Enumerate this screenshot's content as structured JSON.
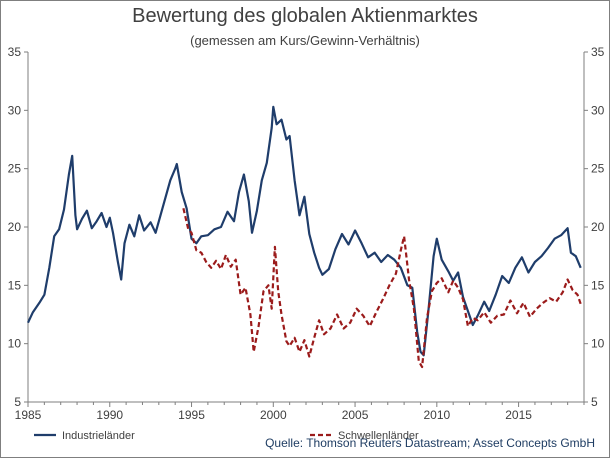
{
  "chart_data": {
    "type": "line",
    "title": "Bewertung des globalen Aktienmarktes",
    "subtitle": "(gemessen am Kurs/Gewinn-Verhältnis)",
    "source": "Quelle: Thomson Reuters Datastream; Asset Concepts GmbH",
    "xlim": [
      1985,
      2019
    ],
    "ylim": [
      5,
      35
    ],
    "x_ticks": [
      1985,
      1990,
      1995,
      2000,
      2005,
      2010,
      2015
    ],
    "y_ticks": [
      5,
      10,
      15,
      20,
      25,
      30,
      35
    ],
    "legend_position": "bottom",
    "grid": false,
    "series": [
      {
        "name": "Industrieländer",
        "color": "#1f3d6b",
        "style": "solid",
        "points": [
          [
            1985.0,
            11.8
          ],
          [
            1985.3,
            12.7
          ],
          [
            1985.7,
            13.5
          ],
          [
            1986.0,
            14.2
          ],
          [
            1986.3,
            16.5
          ],
          [
            1986.6,
            19.2
          ],
          [
            1986.9,
            19.8
          ],
          [
            1987.2,
            21.5
          ],
          [
            1987.5,
            24.5
          ],
          [
            1987.7,
            26.1
          ],
          [
            1987.9,
            21.0
          ],
          [
            1988.0,
            19.8
          ],
          [
            1988.3,
            20.7
          ],
          [
            1988.6,
            21.4
          ],
          [
            1988.9,
            19.9
          ],
          [
            1989.2,
            20.5
          ],
          [
            1989.5,
            21.2
          ],
          [
            1989.8,
            20.0
          ],
          [
            1990.0,
            20.8
          ],
          [
            1990.2,
            19.5
          ],
          [
            1990.5,
            17.0
          ],
          [
            1990.7,
            15.5
          ],
          [
            1990.9,
            18.6
          ],
          [
            1991.2,
            20.2
          ],
          [
            1991.5,
            19.2
          ],
          [
            1991.8,
            21.0
          ],
          [
            1992.1,
            19.7
          ],
          [
            1992.5,
            20.4
          ],
          [
            1992.8,
            19.5
          ],
          [
            1993.1,
            21.0
          ],
          [
            1993.4,
            22.5
          ],
          [
            1993.7,
            24.0
          ],
          [
            1994.0,
            25.0
          ],
          [
            1994.1,
            25.4
          ],
          [
            1994.4,
            23.0
          ],
          [
            1994.7,
            21.6
          ],
          [
            1995.0,
            19.0
          ],
          [
            1995.3,
            18.6
          ],
          [
            1995.6,
            19.2
          ],
          [
            1996.0,
            19.3
          ],
          [
            1996.4,
            19.8
          ],
          [
            1996.8,
            20.0
          ],
          [
            1997.2,
            21.3
          ],
          [
            1997.6,
            20.5
          ],
          [
            1997.9,
            23.0
          ],
          [
            1998.2,
            24.5
          ],
          [
            1998.5,
            22.2
          ],
          [
            1998.7,
            19.5
          ],
          [
            1999.0,
            21.4
          ],
          [
            1999.3,
            24.0
          ],
          [
            1999.6,
            25.5
          ],
          [
            1999.9,
            28.5
          ],
          [
            2000.0,
            30.3
          ],
          [
            2000.2,
            28.8
          ],
          [
            2000.5,
            29.2
          ],
          [
            2000.8,
            27.5
          ],
          [
            2001.0,
            27.8
          ],
          [
            2001.3,
            24.0
          ],
          [
            2001.6,
            21.0
          ],
          [
            2001.9,
            22.6
          ],
          [
            2002.2,
            19.4
          ],
          [
            2002.5,
            17.8
          ],
          [
            2002.8,
            16.5
          ],
          [
            2003.0,
            15.9
          ],
          [
            2003.4,
            16.4
          ],
          [
            2003.8,
            18.1
          ],
          [
            2004.2,
            19.4
          ],
          [
            2004.6,
            18.5
          ],
          [
            2005.0,
            19.7
          ],
          [
            2005.4,
            18.6
          ],
          [
            2005.8,
            17.4
          ],
          [
            2006.2,
            17.8
          ],
          [
            2006.6,
            17.0
          ],
          [
            2007.0,
            17.6
          ],
          [
            2007.4,
            17.2
          ],
          [
            2007.8,
            16.5
          ],
          [
            2008.2,
            15.0
          ],
          [
            2008.5,
            14.8
          ],
          [
            2008.8,
            11.0
          ],
          [
            2009.0,
            9.3
          ],
          [
            2009.2,
            9.0
          ],
          [
            2009.5,
            13.0
          ],
          [
            2009.8,
            17.5
          ],
          [
            2010.0,
            19.0
          ],
          [
            2010.3,
            17.2
          ],
          [
            2010.7,
            16.2
          ],
          [
            2011.0,
            15.4
          ],
          [
            2011.3,
            16.1
          ],
          [
            2011.6,
            14.0
          ],
          [
            2011.9,
            12.8
          ],
          [
            2012.2,
            11.6
          ],
          [
            2012.5,
            12.4
          ],
          [
            2012.9,
            13.6
          ],
          [
            2013.2,
            12.8
          ],
          [
            2013.6,
            14.2
          ],
          [
            2014.0,
            15.8
          ],
          [
            2014.4,
            15.2
          ],
          [
            2014.8,
            16.5
          ],
          [
            2015.2,
            17.4
          ],
          [
            2015.6,
            16.1
          ],
          [
            2016.0,
            17.0
          ],
          [
            2016.4,
            17.5
          ],
          [
            2016.8,
            18.2
          ],
          [
            2017.2,
            19.0
          ],
          [
            2017.6,
            19.3
          ],
          [
            2018.0,
            19.9
          ],
          [
            2018.2,
            17.8
          ],
          [
            2018.5,
            17.5
          ],
          [
            2018.8,
            16.5
          ]
        ]
      },
      {
        "name": "Schwellenländer",
        "color": "#9b1b1b",
        "style": "dashed",
        "points": [
          [
            1994.5,
            21.6
          ],
          [
            1994.8,
            19.8
          ],
          [
            1995.0,
            19.5
          ],
          [
            1995.3,
            18.0
          ],
          [
            1995.6,
            17.8
          ],
          [
            1995.9,
            17.0
          ],
          [
            1996.2,
            16.5
          ],
          [
            1996.5,
            17.1
          ],
          [
            1996.8,
            16.4
          ],
          [
            1997.1,
            17.6
          ],
          [
            1997.4,
            16.6
          ],
          [
            1997.7,
            17.2
          ],
          [
            1998.0,
            14.2
          ],
          [
            1998.3,
            14.8
          ],
          [
            1998.6,
            12.5
          ],
          [
            1998.8,
            9.3
          ],
          [
            1999.1,
            11.5
          ],
          [
            1999.4,
            14.5
          ],
          [
            1999.7,
            15.0
          ],
          [
            1999.9,
            13.0
          ],
          [
            2000.1,
            18.3
          ],
          [
            2000.3,
            14.5
          ],
          [
            2000.5,
            12.5
          ],
          [
            2000.8,
            10.2
          ],
          [
            2001.0,
            9.8
          ],
          [
            2001.3,
            10.5
          ],
          [
            2001.6,
            9.3
          ],
          [
            2001.9,
            10.3
          ],
          [
            2002.2,
            8.9
          ],
          [
            2002.5,
            10.5
          ],
          [
            2002.8,
            12.0
          ],
          [
            2003.1,
            10.8
          ],
          [
            2003.5,
            11.3
          ],
          [
            2003.9,
            12.5
          ],
          [
            2004.3,
            11.3
          ],
          [
            2004.7,
            11.8
          ],
          [
            2005.1,
            13.0
          ],
          [
            2005.5,
            12.4
          ],
          [
            2005.9,
            11.5
          ],
          [
            2006.3,
            12.7
          ],
          [
            2006.7,
            13.8
          ],
          [
            2007.1,
            15.0
          ],
          [
            2007.5,
            16.0
          ],
          [
            2007.8,
            18.0
          ],
          [
            2008.0,
            19.2
          ],
          [
            2008.3,
            15.5
          ],
          [
            2008.6,
            13.0
          ],
          [
            2008.9,
            8.5
          ],
          [
            2009.1,
            8.0
          ],
          [
            2009.4,
            12.2
          ],
          [
            2009.7,
            14.5
          ],
          [
            2010.0,
            15.2
          ],
          [
            2010.3,
            15.6
          ],
          [
            2010.7,
            14.4
          ],
          [
            2011.0,
            15.4
          ],
          [
            2011.3,
            14.8
          ],
          [
            2011.6,
            13.8
          ],
          [
            2011.9,
            11.5
          ],
          [
            2012.2,
            12.2
          ],
          [
            2012.5,
            12.0
          ],
          [
            2012.9,
            12.7
          ],
          [
            2013.3,
            11.8
          ],
          [
            2013.7,
            12.4
          ],
          [
            2014.1,
            12.5
          ],
          [
            2014.5,
            13.7
          ],
          [
            2014.9,
            12.6
          ],
          [
            2015.3,
            13.5
          ],
          [
            2015.7,
            12.3
          ],
          [
            2016.1,
            13.0
          ],
          [
            2016.5,
            13.5
          ],
          [
            2016.9,
            13.9
          ],
          [
            2017.3,
            13.6
          ],
          [
            2017.7,
            14.4
          ],
          [
            2018.0,
            15.5
          ],
          [
            2018.3,
            14.6
          ],
          [
            2018.6,
            14.2
          ],
          [
            2018.8,
            13.4
          ]
        ]
      }
    ]
  }
}
